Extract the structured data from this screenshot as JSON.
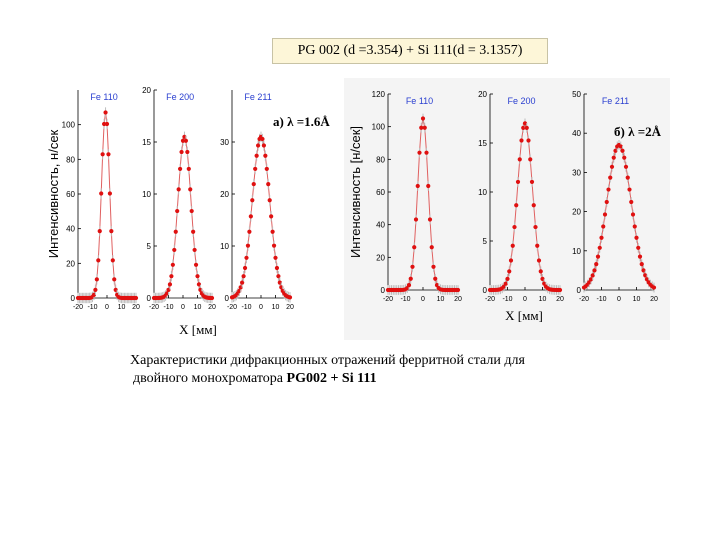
{
  "header": {
    "title": "PG 002 (d =3.354) + Si 111(d = 3.1357)"
  },
  "caption": {
    "line1": "Характеристики дифракционных отражений ферритной стали  для",
    "line2_prefix": "двойного монохроматора ",
    "line2_bold": "PG002 + Si 111"
  },
  "colors": {
    "points": "#e01010",
    "line": "#e06060",
    "errbar": "#bdbdbd",
    "axis": "#000000"
  },
  "chart_data": [
    {
      "type": "scatter",
      "group_label": "а) λ =1.6Å",
      "ylabel": "Интенсивность, н/сек",
      "xlabel": "X [мм]",
      "panels": [
        {
          "name": "Fe 110",
          "xlim": [
            -20,
            20
          ],
          "ylim": [
            0,
            120
          ],
          "yticks": [
            0,
            20,
            40,
            60,
            80,
            100
          ],
          "xticks": [
            -20,
            -10,
            0,
            10,
            20
          ],
          "center": -1,
          "sigma": 2.8,
          "peak": 107,
          "step": 1
        },
        {
          "name": "Fe 200",
          "xlim": [
            -20,
            20
          ],
          "ylim": [
            0,
            20
          ],
          "yticks": [
            0,
            5,
            10,
            15,
            20
          ],
          "xticks": [
            -20,
            -10,
            0,
            10,
            20
          ],
          "center": 1,
          "sigma": 4.5,
          "peak": 15.5,
          "step": 1
        },
        {
          "name": "Fe 211",
          "xlim": [
            -20,
            20
          ],
          "ylim": [
            0,
            40
          ],
          "yticks": [
            0,
            10,
            20,
            30
          ],
          "xticks": [
            -20,
            -10,
            0,
            10,
            20
          ],
          "center": 0,
          "sigma": 6,
          "peak": 31,
          "step": 1
        }
      ]
    },
    {
      "type": "scatter",
      "group_label": "б) λ =2Å",
      "ylabel": "Интенсивность [н/сек]",
      "xlabel": "X [мм]",
      "panels": [
        {
          "name": "Fe 110",
          "xlim": [
            -20,
            20
          ],
          "ylim": [
            0,
            120
          ],
          "yticks": [
            0,
            20,
            40,
            60,
            80,
            100,
            120
          ],
          "xticks": [
            -20,
            -10,
            0,
            10,
            20
          ],
          "center": 0,
          "sigma": 3,
          "peak": 105,
          "step": 1
        },
        {
          "name": "Fe 200",
          "xlim": [
            -20,
            20
          ],
          "ylim": [
            0,
            20
          ],
          "yticks": [
            0,
            5,
            10,
            15,
            20
          ],
          "xticks": [
            -20,
            -10,
            0,
            10,
            20
          ],
          "center": 0,
          "sigma": 4.3,
          "peak": 17,
          "step": 1
        },
        {
          "name": "Fe 211",
          "xlim": [
            -20,
            20
          ],
          "ylim": [
            0,
            50
          ],
          "yticks": [
            0,
            10,
            20,
            30,
            40,
            50
          ],
          "xticks": [
            -20,
            -10,
            0,
            10,
            20
          ],
          "center": 0,
          "sigma": 7,
          "peak": 37,
          "step": 1
        }
      ]
    }
  ]
}
